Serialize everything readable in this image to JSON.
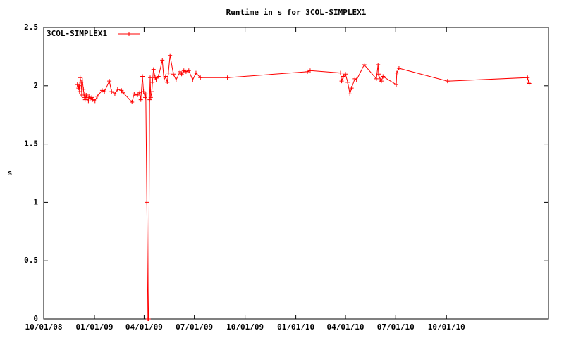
{
  "chart_data": {
    "type": "line",
    "title": "Runtime in s for 3COL-SIMPLEX1",
    "y_label": "s",
    "x": [
      "2008-12-01",
      "2008-12-03",
      "2008-12-04",
      "2008-12-05",
      "2008-12-06",
      "2008-12-08",
      "2008-12-09",
      "2008-12-10",
      "2008-12-12",
      "2008-12-13",
      "2008-12-14",
      "2008-12-15",
      "2008-12-17",
      "2008-12-18",
      "2008-12-21",
      "2008-12-22",
      "2008-12-24",
      "2008-12-27",
      "2008-12-29",
      "2009-01-02",
      "2009-01-06",
      "2009-01-15",
      "2009-01-19",
      "2009-01-28",
      "2009-02-01",
      "2009-02-07",
      "2009-02-12",
      "2009-02-19",
      "2009-02-22",
      "2009-03-10",
      "2009-03-14",
      "2009-03-20",
      "2009-03-24",
      "2009-03-26",
      "2009-03-29",
      "2009-03-31",
      "2009-04-03",
      "2009-04-04",
      "2009-04-06",
      "2009-04-08",
      "2009-04-09",
      "2009-04-11",
      "2009-04-12",
      "2009-04-13",
      "2009-04-15",
      "2009-04-16",
      "2009-04-18",
      "2009-04-21",
      "2009-04-23",
      "2009-04-27",
      "2009-05-04",
      "2009-05-07",
      "2009-05-10",
      "2009-05-13",
      "2009-05-15",
      "2009-05-18",
      "2009-05-24",
      "2009-05-29",
      "2009-06-05",
      "2009-06-08",
      "2009-06-12",
      "2009-06-16",
      "2009-06-21",
      "2009-06-28",
      "2009-07-04",
      "2009-07-12",
      "2009-08-30",
      "2010-01-22",
      "2010-01-27",
      "2010-03-23",
      "2010-03-25",
      "2010-03-28",
      "2010-04-01",
      "2010-04-05",
      "2010-04-09",
      "2010-04-12",
      "2010-04-18",
      "2010-04-21",
      "2010-05-05",
      "2010-05-27",
      "2010-05-30",
      "2010-05-31",
      "2010-06-03",
      "2010-06-05",
      "2010-06-08",
      "2010-07-02",
      "2010-07-03",
      "2010-07-07",
      "2010-10-03",
      "2011-02-25",
      "2011-02-27",
      "2011-02-28"
    ],
    "series": [
      {
        "name": "3COL-SIMPLEX1",
        "color": "#ff0000",
        "values": [
          2.01,
          1.98,
          2.0,
          1.95,
          2.07,
          2.03,
          1.92,
          2.05,
          1.97,
          1.93,
          1.9,
          1.88,
          1.92,
          1.9,
          1.87,
          1.91,
          1.89,
          1.9,
          1.88,
          1.87,
          1.91,
          1.96,
          1.95,
          2.04,
          1.95,
          1.93,
          1.97,
          1.96,
          1.94,
          1.86,
          1.93,
          1.92,
          1.94,
          1.88,
          2.08,
          1.95,
          1.9,
          1.93,
          1.0,
          0,
          0,
          1.88,
          2.07,
          1.9,
          1.95,
          2.03,
          2.14,
          2.07,
          2.05,
          2.08,
          2.22,
          2.05,
          2.08,
          2.03,
          2.11,
          2.26,
          2.1,
          2.05,
          2.12,
          2.1,
          2.13,
          2.12,
          2.13,
          2.05,
          2.11,
          2.07,
          2.07,
          2.12,
          2.13,
          2.11,
          2.04,
          2.08,
          2.1,
          2.03,
          1.93,
          1.98,
          2.06,
          2.05,
          2.18,
          2.06,
          2.18,
          2.1,
          2.05,
          2.04,
          2.08,
          2.01,
          2.11,
          2.15,
          2.04,
          2.07,
          2.03,
          2.02
        ]
      }
    ],
    "xlim": [
      "2008-10-01",
      "2011-04-04"
    ],
    "xticks": [
      {
        "value": "2008-10-01",
        "label": "10/01/08"
      },
      {
        "value": "2009-01-01",
        "label": "01/01/09"
      },
      {
        "value": "2009-04-01",
        "label": "04/01/09"
      },
      {
        "value": "2009-07-01",
        "label": "07/01/09"
      },
      {
        "value": "2009-10-01",
        "label": "10/01/09"
      },
      {
        "value": "2010-01-01",
        "label": "01/01/10"
      },
      {
        "value": "2010-04-01",
        "label": "04/01/10"
      },
      {
        "value": "2010-07-01",
        "label": "07/01/10"
      },
      {
        "value": "2010-10-01",
        "label": "10/01/10"
      }
    ],
    "ylim": [
      0,
      2.5
    ],
    "yticks": [
      0,
      0.5,
      1,
      1.5,
      2,
      2.5
    ],
    "legend": "top-left"
  }
}
